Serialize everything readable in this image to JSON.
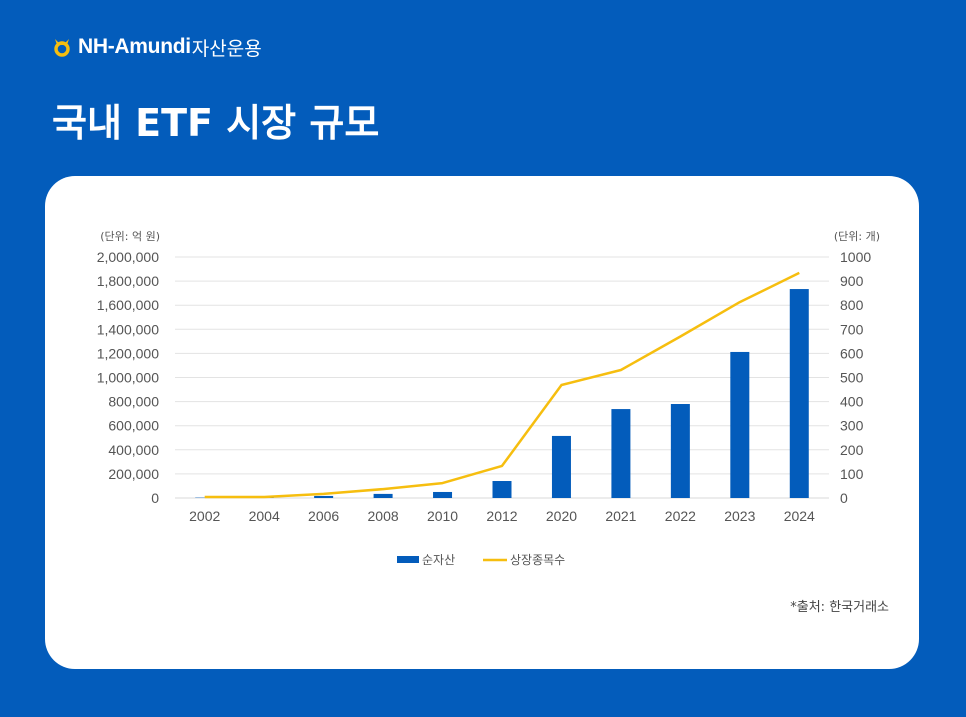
{
  "logo": {
    "brand": "NH-Amundi",
    "suffix": "자산운용"
  },
  "title": "국내 ETF 시장 규모",
  "source": "*출처: 한국거래소",
  "colors": {
    "background": "#035CBB",
    "bar": "#035CBB",
    "line": "#F6BE0F",
    "grid": "#E3E3E3"
  },
  "chart_data": {
    "type": "bar+line",
    "categories": [
      "2002",
      "2004",
      "2006",
      "2008",
      "2010",
      "2012",
      "2020",
      "2021",
      "2022",
      "2023",
      "2024"
    ],
    "series": [
      {
        "name": "순자산",
        "type": "bar",
        "axis": "left",
        "values": [
          3000,
          4000,
          17000,
          34000,
          50000,
          141000,
          515000,
          738000,
          780000,
          1212000,
          1734000
        ]
      },
      {
        "name": "상장종목수",
        "type": "line",
        "axis": "right",
        "values": [
          4,
          4,
          17,
          37,
          62,
          133,
          469,
          531,
          670,
          813,
          934
        ]
      }
    ],
    "left_axis": {
      "unit_label": "(단위: 억 원)",
      "ylim": [
        0,
        2000000
      ],
      "ticks": [
        "0",
        "200,000",
        "400,000",
        "600,000",
        "800,000",
        "1,000,000",
        "1,200,000",
        "1,400,000",
        "1,600,000",
        "1,800,000",
        "2,000,000"
      ]
    },
    "right_axis": {
      "unit_label": "(단위: 개)",
      "ylim": [
        0,
        1000
      ],
      "ticks": [
        "0",
        "100",
        "200",
        "300",
        "400",
        "500",
        "600",
        "700",
        "800",
        "900",
        "1000"
      ]
    },
    "grid": true,
    "legend": "bottom-center"
  }
}
